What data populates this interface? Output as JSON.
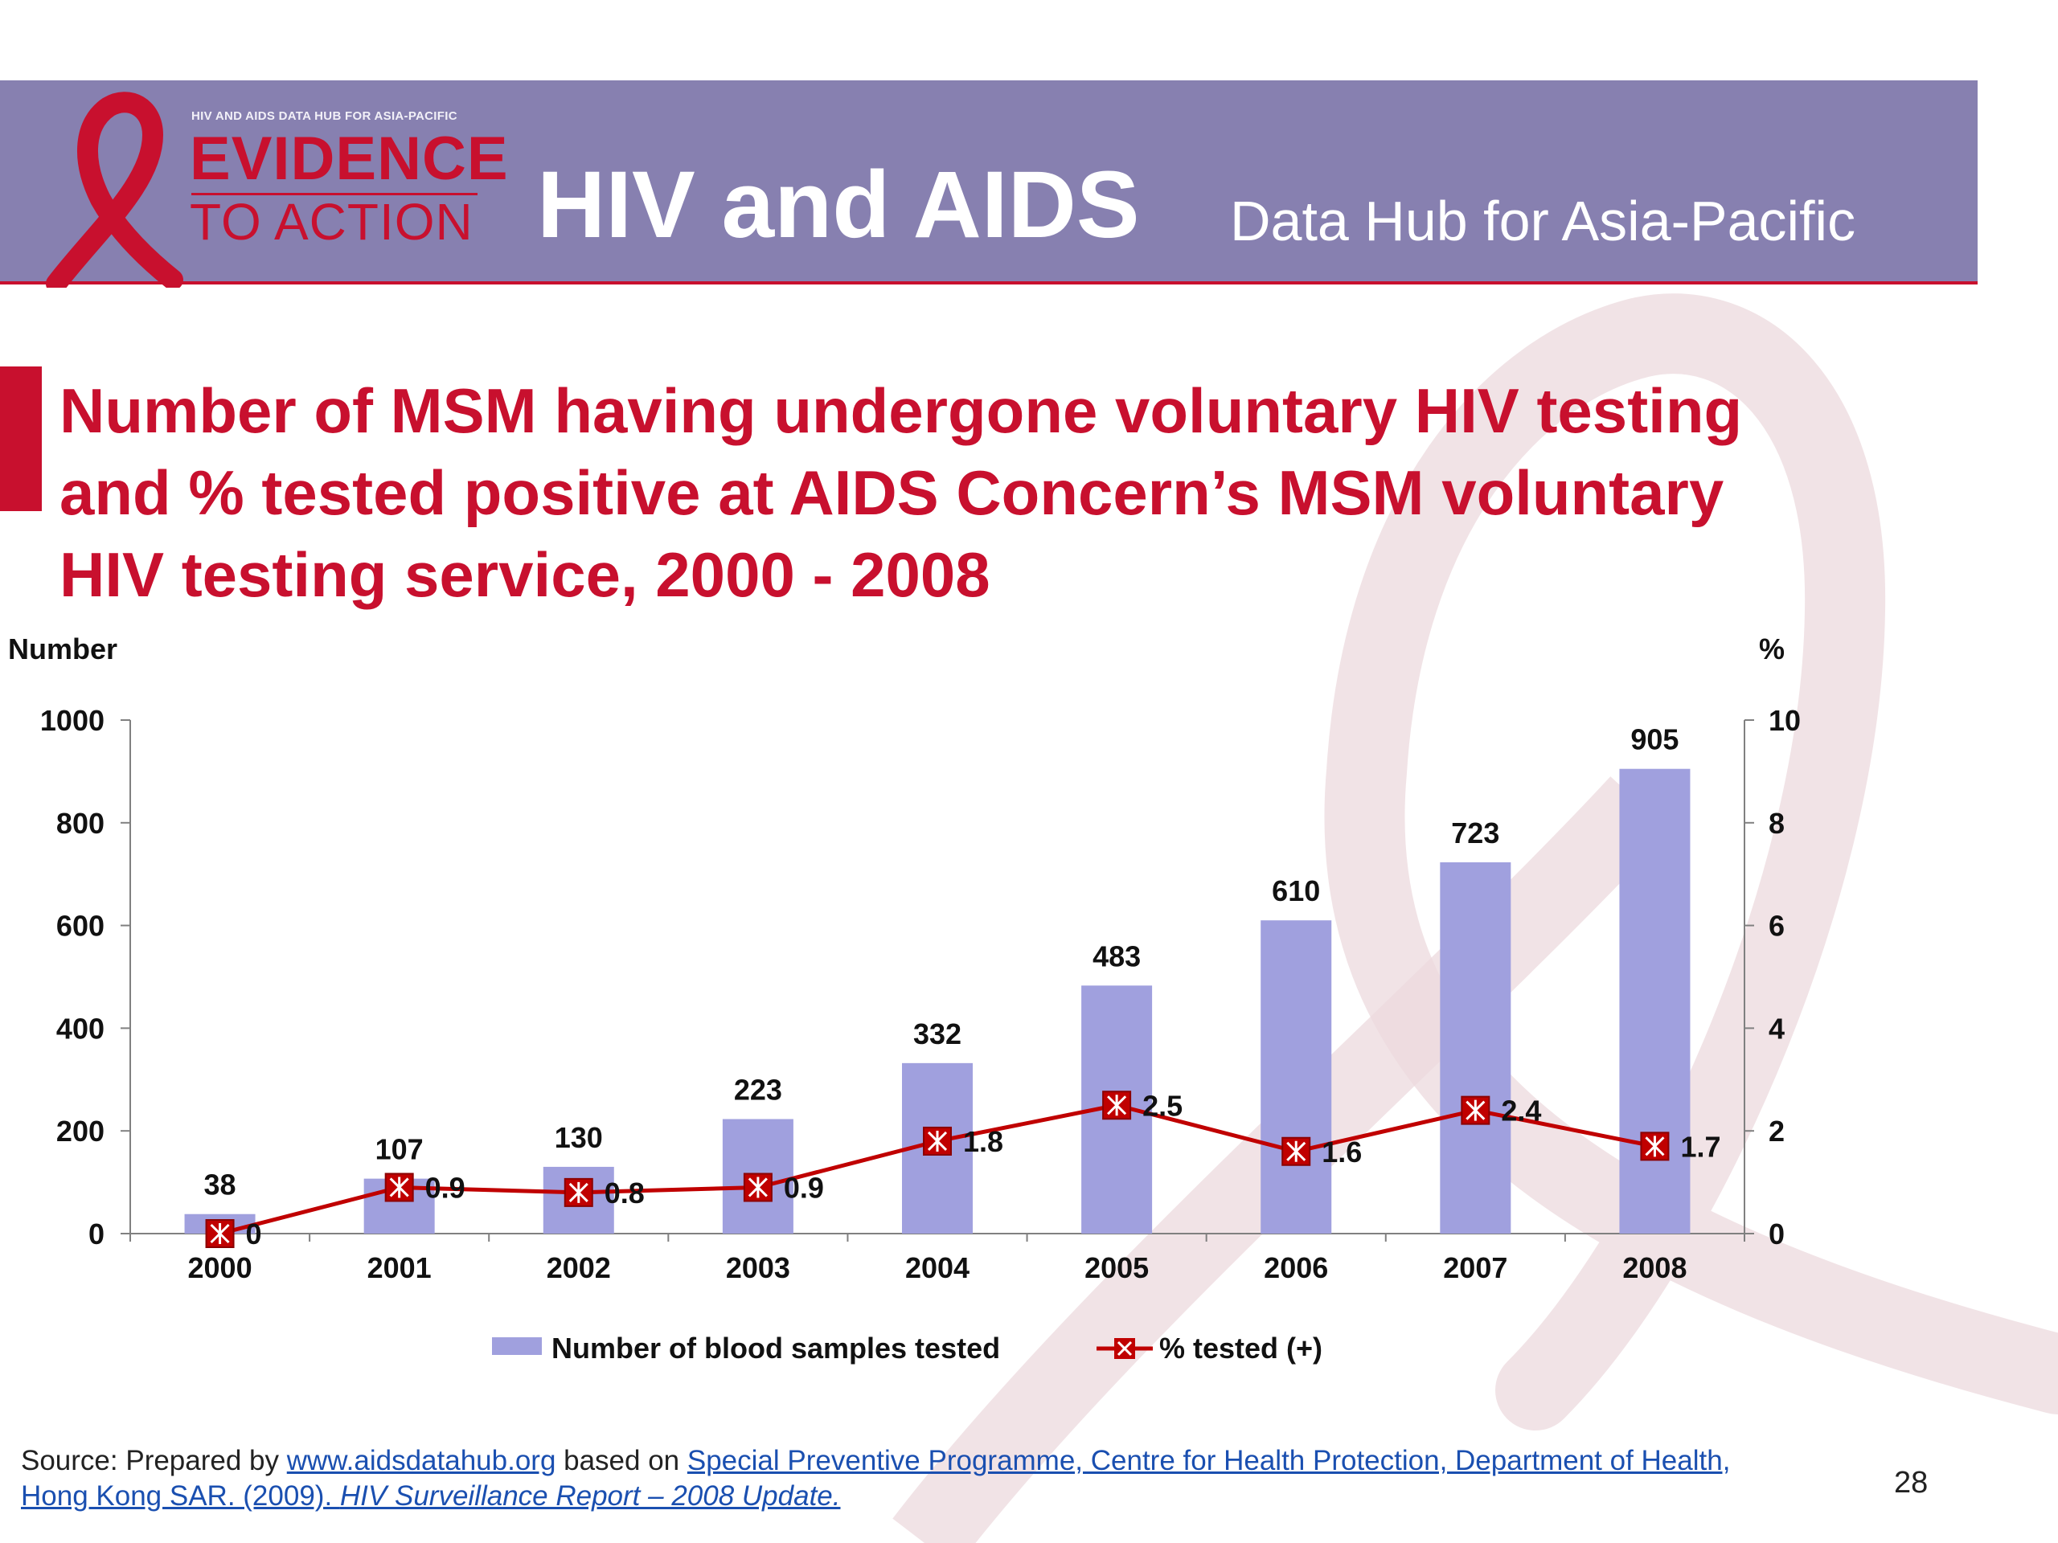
{
  "header": {
    "logo_small": "HIV AND AIDS DATA HUB FOR ASIA-PACIFIC",
    "logo_evidence": "EVIDENCE",
    "logo_action": "TO ACTION",
    "hub_main": "HIV and AIDS",
    "hub_sub": "Data Hub for Asia-Pacific"
  },
  "title_lines": [
    "Number of MSM having undergone voluntary HIV testing",
    "and % tested positive at AIDS Concern’s MSM voluntary",
    "HIV testing service, 2000 - 2008"
  ],
  "chart_data": {
    "type": "bar",
    "categories": [
      "2000",
      "2001",
      "2002",
      "2003",
      "2004",
      "2005",
      "2006",
      "2007",
      "2008"
    ],
    "series": [
      {
        "name": "Number of blood samples tested",
        "type": "bar",
        "axis": "left",
        "values": [
          38,
          107,
          130,
          223,
          332,
          483,
          610,
          723,
          905
        ],
        "labels": [
          "38",
          "107",
          "130",
          "223",
          "332",
          "483",
          "610",
          "723",
          "905"
        ]
      },
      {
        "name": "% tested (+)",
        "type": "line",
        "axis": "right",
        "values": [
          0,
          0.9,
          0.8,
          0.9,
          1.8,
          2.5,
          1.6,
          2.4,
          1.7
        ],
        "labels": [
          "0",
          "0.9",
          "0.8",
          "0.9",
          "1.8",
          "2.5",
          "1.6",
          "2.4",
          "1.7"
        ]
      }
    ],
    "ylabel": "Number",
    "y2label": "%",
    "ylim": [
      0,
      1000
    ],
    "y2lim": [
      0,
      10
    ],
    "yticks": [
      "0",
      "200",
      "400",
      "600",
      "800",
      "1000"
    ],
    "y2ticks": [
      "0",
      "2",
      "4",
      "6",
      "8",
      "10"
    ],
    "legend": "bottom",
    "grid": false,
    "colors": {
      "bar": "#a0a0de",
      "line": "#c00000",
      "marker_fill": "#c00000",
      "marker_cross": "#ffffff"
    }
  },
  "source": {
    "prefix": "Source: Prepared by ",
    "link1": "www.aidsdatahub.org",
    "middle": "  based on ",
    "link2": "Special Preventive Programme, Centre for Health Protection, Department of Health,",
    "link3": "Hong Kong SAR. (2009). ",
    "link3_italic": "HIV Surveillance Report – 2008 Update."
  },
  "page_number": "28",
  "colors": {
    "header_band": "#8780b0",
    "accent_red": "#c8102e",
    "link": "#1a4fb0"
  }
}
